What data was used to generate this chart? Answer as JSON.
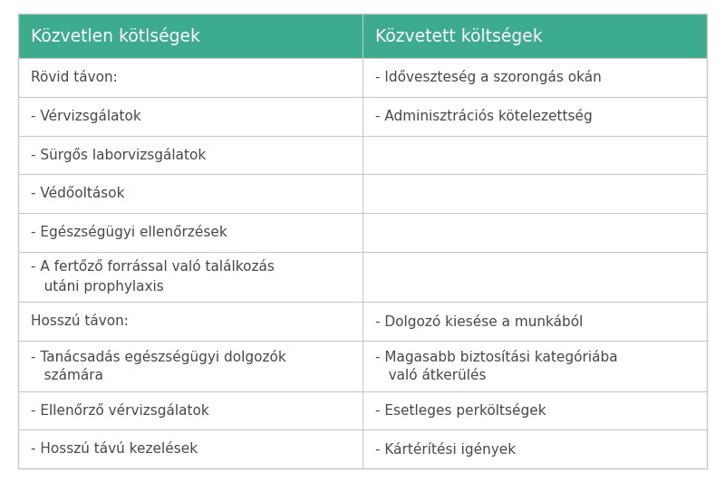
{
  "header": [
    "Közvetlen kötlségek",
    "Közvetett költségek"
  ],
  "header_bg": "#3dab8e",
  "header_text_color": "#ffffff",
  "header_font_size": 13.5,
  "body_font_size": 11,
  "body_text_color": "#4a4a4a",
  "grid_color": "#c8c8c8",
  "rows": [
    [
      "Rövid távon:",
      "- Időveszteség a szorongás okán"
    ],
    [
      "- Vérvizsgálatok",
      "- Adminisztrációs kötelezettség"
    ],
    [
      "- Sürgős laborvizsgálatok",
      ""
    ],
    [
      "- Védőoltások",
      ""
    ],
    [
      "- Egészségügyi ellenőrzések",
      ""
    ],
    [
      "- A fertőző forrással való találkozás\n   utáni prophylaxis",
      ""
    ],
    [
      "Hosszú távon:",
      "- Dolgozó kiesése a munkából"
    ],
    [
      "- Tanácsadás egészségügyi dolgozók\n   számára",
      "- Magasabb biztosítási kategóriába\n   való átkerülés"
    ],
    [
      "- Ellenőrző vérvizsgálatok",
      "- Esetleges perköltségek"
    ],
    [
      "- Hosszú távú kezelések",
      "- Kártérítési igények"
    ]
  ],
  "fig_width": 8.0,
  "fig_height": 5.32,
  "dpi": 100
}
